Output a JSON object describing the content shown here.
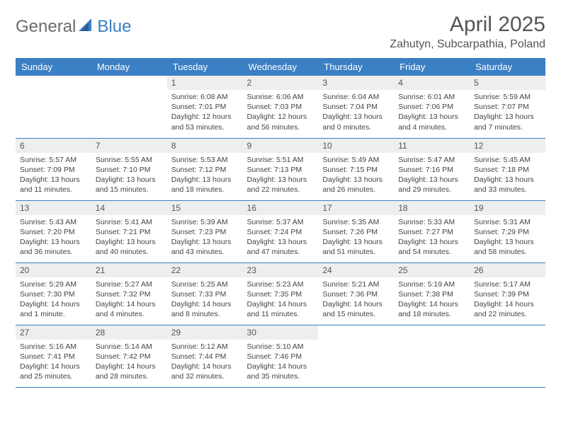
{
  "brand": {
    "part1": "General",
    "part2": "Blue"
  },
  "title": "April 2025",
  "location": "Zahutyn, Subcarpathia, Poland",
  "colors": {
    "accent": "#3b7fc4",
    "header_text": "#ffffff",
    "daynum_bg": "#eeeeee",
    "text": "#444444",
    "title_color": "#555555"
  },
  "weekdays": [
    "Sunday",
    "Monday",
    "Tuesday",
    "Wednesday",
    "Thursday",
    "Friday",
    "Saturday"
  ],
  "weeks": [
    [
      null,
      null,
      {
        "n": "1",
        "sr": "Sunrise: 6:08 AM",
        "ss": "Sunset: 7:01 PM",
        "dl": "Daylight: 12 hours and 53 minutes."
      },
      {
        "n": "2",
        "sr": "Sunrise: 6:06 AM",
        "ss": "Sunset: 7:03 PM",
        "dl": "Daylight: 12 hours and 56 minutes."
      },
      {
        "n": "3",
        "sr": "Sunrise: 6:04 AM",
        "ss": "Sunset: 7:04 PM",
        "dl": "Daylight: 13 hours and 0 minutes."
      },
      {
        "n": "4",
        "sr": "Sunrise: 6:01 AM",
        "ss": "Sunset: 7:06 PM",
        "dl": "Daylight: 13 hours and 4 minutes."
      },
      {
        "n": "5",
        "sr": "Sunrise: 5:59 AM",
        "ss": "Sunset: 7:07 PM",
        "dl": "Daylight: 13 hours and 7 minutes."
      }
    ],
    [
      {
        "n": "6",
        "sr": "Sunrise: 5:57 AM",
        "ss": "Sunset: 7:09 PM",
        "dl": "Daylight: 13 hours and 11 minutes."
      },
      {
        "n": "7",
        "sr": "Sunrise: 5:55 AM",
        "ss": "Sunset: 7:10 PM",
        "dl": "Daylight: 13 hours and 15 minutes."
      },
      {
        "n": "8",
        "sr": "Sunrise: 5:53 AM",
        "ss": "Sunset: 7:12 PM",
        "dl": "Daylight: 13 hours and 18 minutes."
      },
      {
        "n": "9",
        "sr": "Sunrise: 5:51 AM",
        "ss": "Sunset: 7:13 PM",
        "dl": "Daylight: 13 hours and 22 minutes."
      },
      {
        "n": "10",
        "sr": "Sunrise: 5:49 AM",
        "ss": "Sunset: 7:15 PM",
        "dl": "Daylight: 13 hours and 26 minutes."
      },
      {
        "n": "11",
        "sr": "Sunrise: 5:47 AM",
        "ss": "Sunset: 7:16 PM",
        "dl": "Daylight: 13 hours and 29 minutes."
      },
      {
        "n": "12",
        "sr": "Sunrise: 5:45 AM",
        "ss": "Sunset: 7:18 PM",
        "dl": "Daylight: 13 hours and 33 minutes."
      }
    ],
    [
      {
        "n": "13",
        "sr": "Sunrise: 5:43 AM",
        "ss": "Sunset: 7:20 PM",
        "dl": "Daylight: 13 hours and 36 minutes."
      },
      {
        "n": "14",
        "sr": "Sunrise: 5:41 AM",
        "ss": "Sunset: 7:21 PM",
        "dl": "Daylight: 13 hours and 40 minutes."
      },
      {
        "n": "15",
        "sr": "Sunrise: 5:39 AM",
        "ss": "Sunset: 7:23 PM",
        "dl": "Daylight: 13 hours and 43 minutes."
      },
      {
        "n": "16",
        "sr": "Sunrise: 5:37 AM",
        "ss": "Sunset: 7:24 PM",
        "dl": "Daylight: 13 hours and 47 minutes."
      },
      {
        "n": "17",
        "sr": "Sunrise: 5:35 AM",
        "ss": "Sunset: 7:26 PM",
        "dl": "Daylight: 13 hours and 51 minutes."
      },
      {
        "n": "18",
        "sr": "Sunrise: 5:33 AM",
        "ss": "Sunset: 7:27 PM",
        "dl": "Daylight: 13 hours and 54 minutes."
      },
      {
        "n": "19",
        "sr": "Sunrise: 5:31 AM",
        "ss": "Sunset: 7:29 PM",
        "dl": "Daylight: 13 hours and 58 minutes."
      }
    ],
    [
      {
        "n": "20",
        "sr": "Sunrise: 5:29 AM",
        "ss": "Sunset: 7:30 PM",
        "dl": "Daylight: 14 hours and 1 minute."
      },
      {
        "n": "21",
        "sr": "Sunrise: 5:27 AM",
        "ss": "Sunset: 7:32 PM",
        "dl": "Daylight: 14 hours and 4 minutes."
      },
      {
        "n": "22",
        "sr": "Sunrise: 5:25 AM",
        "ss": "Sunset: 7:33 PM",
        "dl": "Daylight: 14 hours and 8 minutes."
      },
      {
        "n": "23",
        "sr": "Sunrise: 5:23 AM",
        "ss": "Sunset: 7:35 PM",
        "dl": "Daylight: 14 hours and 11 minutes."
      },
      {
        "n": "24",
        "sr": "Sunrise: 5:21 AM",
        "ss": "Sunset: 7:36 PM",
        "dl": "Daylight: 14 hours and 15 minutes."
      },
      {
        "n": "25",
        "sr": "Sunrise: 5:19 AM",
        "ss": "Sunset: 7:38 PM",
        "dl": "Daylight: 14 hours and 18 minutes."
      },
      {
        "n": "26",
        "sr": "Sunrise: 5:17 AM",
        "ss": "Sunset: 7:39 PM",
        "dl": "Daylight: 14 hours and 22 minutes."
      }
    ],
    [
      {
        "n": "27",
        "sr": "Sunrise: 5:16 AM",
        "ss": "Sunset: 7:41 PM",
        "dl": "Daylight: 14 hours and 25 minutes."
      },
      {
        "n": "28",
        "sr": "Sunrise: 5:14 AM",
        "ss": "Sunset: 7:42 PM",
        "dl": "Daylight: 14 hours and 28 minutes."
      },
      {
        "n": "29",
        "sr": "Sunrise: 5:12 AM",
        "ss": "Sunset: 7:44 PM",
        "dl": "Daylight: 14 hours and 32 minutes."
      },
      {
        "n": "30",
        "sr": "Sunrise: 5:10 AM",
        "ss": "Sunset: 7:46 PM",
        "dl": "Daylight: 14 hours and 35 minutes."
      },
      null,
      null,
      null
    ]
  ]
}
